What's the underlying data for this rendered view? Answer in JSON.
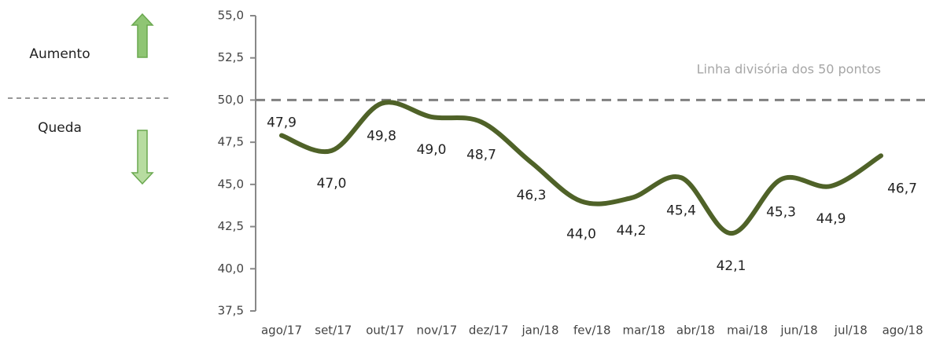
{
  "chart_data": {
    "type": "line",
    "categories": [
      "ago/17",
      "set/17",
      "out/17",
      "nov/17",
      "dez/17",
      "jan/18",
      "fev/18",
      "mar/18",
      "abr/18",
      "mai/18",
      "jun/18",
      "jul/18",
      "ago/18"
    ],
    "series": [
      {
        "color": "#4f6228",
        "values": [
          47.9,
          47.0,
          49.8,
          49.0,
          48.7,
          46.3,
          44.0,
          44.2,
          45.4,
          42.1,
          45.3,
          44.9,
          46.7
        ],
        "value_labels": [
          "47,9",
          "47,0",
          "49,8",
          "49,0",
          "48,7",
          "46,3",
          "44,0",
          "44,2",
          "45,4",
          "42,1",
          "45,3",
          "44,9",
          "46,7"
        ]
      }
    ],
    "ylim": [
      37.5,
      55
    ],
    "yticks": [
      {
        "value": 37.5,
        "label": "37,5"
      },
      {
        "value": 40,
        "label": "40,0"
      },
      {
        "value": 42.5,
        "label": "42,5"
      },
      {
        "value": 45,
        "label": "45,0"
      },
      {
        "value": 47.5,
        "label": "47,5"
      },
      {
        "value": 50,
        "label": "50,0"
      },
      {
        "value": 52.5,
        "label": "52,5"
      },
      {
        "value": 55,
        "label": "55,0"
      }
    ],
    "reference_line": {
      "value": 50,
      "label": "Linha divisória dos 50 pontos"
    },
    "legend_up": "Aumento",
    "legend_down": "Queda"
  }
}
